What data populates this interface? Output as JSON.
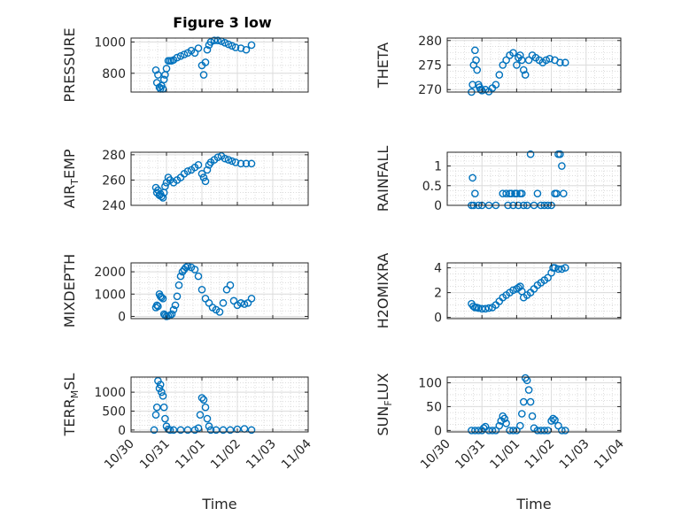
{
  "figure_title": "Figure 3 low",
  "chart_data": [
    {
      "type": "scatter",
      "id": "pressure",
      "ylabel_parts": [
        "PRESSURE"
      ],
      "yticks": [
        800,
        1000
      ],
      "ylim": [
        680,
        1025
      ],
      "xlim": [
        0,
        5
      ],
      "xticklabels": [],
      "xlabel": "",
      "grid": "on",
      "x": [
        0.7,
        0.73,
        0.76,
        0.8,
        0.83,
        0.86,
        0.9,
        0.93,
        0.96,
        1.0,
        1.05,
        1.1,
        1.15,
        1.2,
        1.3,
        1.4,
        1.5,
        1.6,
        1.7,
        1.8,
        1.9,
        2.0,
        2.05,
        2.1,
        2.15,
        2.2,
        2.25,
        2.35,
        2.45,
        2.55,
        2.65,
        2.75,
        2.85,
        2.95,
        3.1,
        3.25,
        3.4
      ],
      "y": [
        820,
        740,
        790,
        710,
        700,
        720,
        700,
        760,
        790,
        830,
        880,
        880,
        880,
        885,
        900,
        910,
        920,
        930,
        945,
        930,
        960,
        850,
        790,
        870,
        950,
        980,
        1000,
        1010,
        1010,
        1005,
        995,
        985,
        975,
        965,
        960,
        950,
        980
      ]
    },
    {
      "type": "scatter",
      "id": "theta",
      "ylabel_parts": [
        "THETA"
      ],
      "yticks": [
        270,
        275,
        280
      ],
      "ylim": [
        269.5,
        280.5
      ],
      "xlim": [
        0,
        5
      ],
      "xticklabels": [],
      "xlabel": "",
      "grid": "on",
      "x": [
        0.7,
        0.73,
        0.76,
        0.8,
        0.83,
        0.86,
        0.9,
        0.93,
        0.96,
        1.0,
        1.1,
        1.2,
        1.3,
        1.4,
        1.5,
        1.6,
        1.7,
        1.8,
        1.9,
        2.0,
        2.05,
        2.1,
        2.15,
        2.2,
        2.25,
        2.35,
        2.45,
        2.55,
        2.65,
        2.75,
        2.85,
        2.95,
        3.1,
        3.25,
        3.4
      ],
      "y": [
        269.5,
        271,
        275,
        278,
        276,
        274,
        271,
        270.5,
        270,
        269.8,
        270,
        269.6,
        270.3,
        271,
        273,
        275,
        276,
        277,
        277.5,
        275,
        276.5,
        277,
        276,
        274,
        273,
        276,
        277,
        276.5,
        276,
        275.5,
        276,
        276.3,
        276,
        275.5,
        275.5
      ]
    },
    {
      "type": "scatter",
      "id": "air_temp",
      "ylabel_parts": [
        "AIR",
        "T",
        "EMP"
      ],
      "yticks": [
        240,
        260,
        280
      ],
      "ylim": [
        240,
        282
      ],
      "xlim": [
        0,
        5
      ],
      "xticklabels": [],
      "xlabel": "",
      "grid": "on",
      "x": [
        0.7,
        0.73,
        0.76,
        0.8,
        0.83,
        0.86,
        0.9,
        0.93,
        0.96,
        1.0,
        1.05,
        1.1,
        1.2,
        1.3,
        1.4,
        1.5,
        1.6,
        1.7,
        1.8,
        1.9,
        2.0,
        2.05,
        2.1,
        2.15,
        2.2,
        2.25,
        2.35,
        2.45,
        2.55,
        2.65,
        2.75,
        2.85,
        2.95,
        3.1,
        3.25,
        3.4
      ],
      "y": [
        254,
        250,
        252,
        248,
        249,
        247,
        246,
        250,
        255,
        258,
        262,
        260,
        258,
        260,
        262,
        265,
        267,
        268,
        270,
        272,
        265,
        262,
        259,
        268,
        272,
        274,
        276,
        278,
        279,
        277,
        276,
        275,
        274,
        273,
        273,
        273
      ]
    },
    {
      "type": "scatter",
      "id": "rainfall",
      "ylabel_parts": [
        "RAINFALL"
      ],
      "yticks": [
        0,
        0.5,
        1
      ],
      "yticklabels": [
        "0",
        "0.5",
        "1"
      ],
      "ylim": [
        0,
        1.35
      ],
      "xlim": [
        0,
        5
      ],
      "xticklabels": [],
      "xlabel": "",
      "grid": "on",
      "x": [
        0.7,
        0.73,
        0.76,
        0.8,
        0.9,
        1.0,
        1.2,
        1.4,
        1.6,
        1.7,
        1.75,
        1.8,
        1.85,
        1.9,
        1.95,
        2.0,
        2.05,
        2.1,
        2.15,
        2.2,
        2.3,
        2.4,
        2.5,
        2.6,
        2.7,
        2.8,
        2.9,
        3.0,
        3.1,
        3.15,
        3.2,
        3.25,
        3.3,
        3.35
      ],
      "y": [
        0,
        0.7,
        0,
        0.3,
        0,
        0,
        0,
        0,
        0.3,
        0.3,
        0,
        0.3,
        0.3,
        0,
        0.3,
        0.3,
        0,
        0.3,
        0.3,
        0,
        0,
        1.3,
        0,
        0.3,
        0,
        0,
        0,
        0,
        0.3,
        0.3,
        1.3,
        1.3,
        1,
        0.3
      ]
    },
    {
      "type": "scatter",
      "id": "mixdepth",
      "ylabel_parts": [
        "MIXDEPTH"
      ],
      "yticks": [
        0,
        1000,
        2000
      ],
      "ylim": [
        -100,
        2400
      ],
      "xlim": [
        0,
        5
      ],
      "xticklabels": [],
      "xlabel": "",
      "grid": "on",
      "x": [
        0.7,
        0.73,
        0.76,
        0.8,
        0.83,
        0.86,
        0.9,
        0.93,
        0.96,
        1.0,
        1.05,
        1.1,
        1.15,
        1.2,
        1.25,
        1.3,
        1.35,
        1.4,
        1.45,
        1.5,
        1.55,
        1.6,
        1.7,
        1.8,
        1.9,
        2.0,
        2.1,
        2.2,
        2.3,
        2.4,
        2.5,
        2.6,
        2.7,
        2.8,
        2.9,
        3.0,
        3.1,
        3.2,
        3.3,
        3.4
      ],
      "y": [
        400,
        500,
        450,
        1000,
        900,
        850,
        800,
        100,
        50,
        0,
        20,
        50,
        100,
        300,
        500,
        900,
        1400,
        1800,
        2000,
        2100,
        2200,
        2250,
        2200,
        2100,
        1800,
        1200,
        800,
        600,
        400,
        300,
        200,
        600,
        1200,
        1400,
        700,
        500,
        600,
        550,
        600,
        800
      ]
    },
    {
      "type": "scatter",
      "id": "h2omixra",
      "ylabel_parts": [
        "H2OMIXRA"
      ],
      "yticks": [
        0,
        2,
        4
      ],
      "ylim": [
        -0.1,
        4.4
      ],
      "xlim": [
        0,
        5
      ],
      "xticklabels": [],
      "xlabel": "",
      "grid": "on",
      "x": [
        0.7,
        0.75,
        0.8,
        0.85,
        0.9,
        1.0,
        1.1,
        1.2,
        1.3,
        1.4,
        1.5,
        1.6,
        1.7,
        1.8,
        1.9,
        2.0,
        2.05,
        2.1,
        2.15,
        2.2,
        2.3,
        2.4,
        2.5,
        2.6,
        2.7,
        2.8,
        2.9,
        3.0,
        3.05,
        3.1,
        3.2,
        3.3,
        3.4
      ],
      "y": [
        1.1,
        0.9,
        0.8,
        0.8,
        0.75,
        0.7,
        0.7,
        0.75,
        0.8,
        1.0,
        1.3,
        1.6,
        1.8,
        2.0,
        2.2,
        2.3,
        2.4,
        2.5,
        2.1,
        1.6,
        1.8,
        2.0,
        2.3,
        2.6,
        2.8,
        3.0,
        3.2,
        3.6,
        4.0,
        4.0,
        3.9,
        3.9,
        4.0
      ]
    },
    {
      "type": "scatter",
      "id": "terr_msl",
      "ylabel_parts": [
        "TERR",
        "M",
        "SL"
      ],
      "yticks": [
        0,
        500,
        1000
      ],
      "ylim": [
        -50,
        1400
      ],
      "xlim": [
        0,
        5
      ],
      "xticklabels": [
        "10/30",
        "10/31",
        "11/01",
        "11/02",
        "11/03",
        "11/04"
      ],
      "xlabel": "Time",
      "grid": "on",
      "x": [
        0.65,
        0.7,
        0.73,
        0.76,
        0.8,
        0.83,
        0.86,
        0.9,
        0.93,
        0.96,
        1.0,
        1.05,
        1.1,
        1.2,
        1.4,
        1.6,
        1.8,
        1.9,
        1.95,
        2.0,
        2.05,
        2.1,
        2.15,
        2.2,
        2.25,
        2.4,
        2.6,
        2.8,
        3.0,
        3.2,
        3.4
      ],
      "y": [
        0,
        400,
        600,
        1300,
        1100,
        1200,
        1000,
        900,
        600,
        300,
        100,
        20,
        0,
        0,
        0,
        0,
        0,
        50,
        400,
        850,
        800,
        600,
        300,
        100,
        0,
        0,
        0,
        0,
        20,
        30,
        0
      ]
    },
    {
      "type": "scatter",
      "id": "sun_flux",
      "ylabel_parts": [
        "SUN",
        "F",
        "LUX"
      ],
      "yticks": [
        0,
        50,
        100
      ],
      "ylim": [
        -3,
        112
      ],
      "xlim": [
        0,
        5
      ],
      "xticklabels": [
        "10/30",
        "10/31",
        "11/01",
        "11/02",
        "11/03",
        "11/04"
      ],
      "xlabel": "Time",
      "grid": "on",
      "x": [
        0.7,
        0.8,
        0.9,
        1.0,
        1.05,
        1.1,
        1.2,
        1.3,
        1.4,
        1.5,
        1.55,
        1.6,
        1.65,
        1.7,
        1.8,
        1.9,
        2.0,
        2.1,
        2.15,
        2.2,
        2.25,
        2.3,
        2.35,
        2.4,
        2.45,
        2.5,
        2.6,
        2.7,
        2.8,
        2.9,
        3.0,
        3.05,
        3.1,
        3.2,
        3.3,
        3.4
      ],
      "y": [
        0,
        0,
        0,
        0,
        5,
        8,
        0,
        0,
        0,
        10,
        20,
        30,
        25,
        15,
        0,
        0,
        0,
        10,
        35,
        60,
        110,
        105,
        85,
        60,
        30,
        5,
        0,
        0,
        0,
        0,
        20,
        25,
        22,
        10,
        0,
        0
      ]
    }
  ]
}
